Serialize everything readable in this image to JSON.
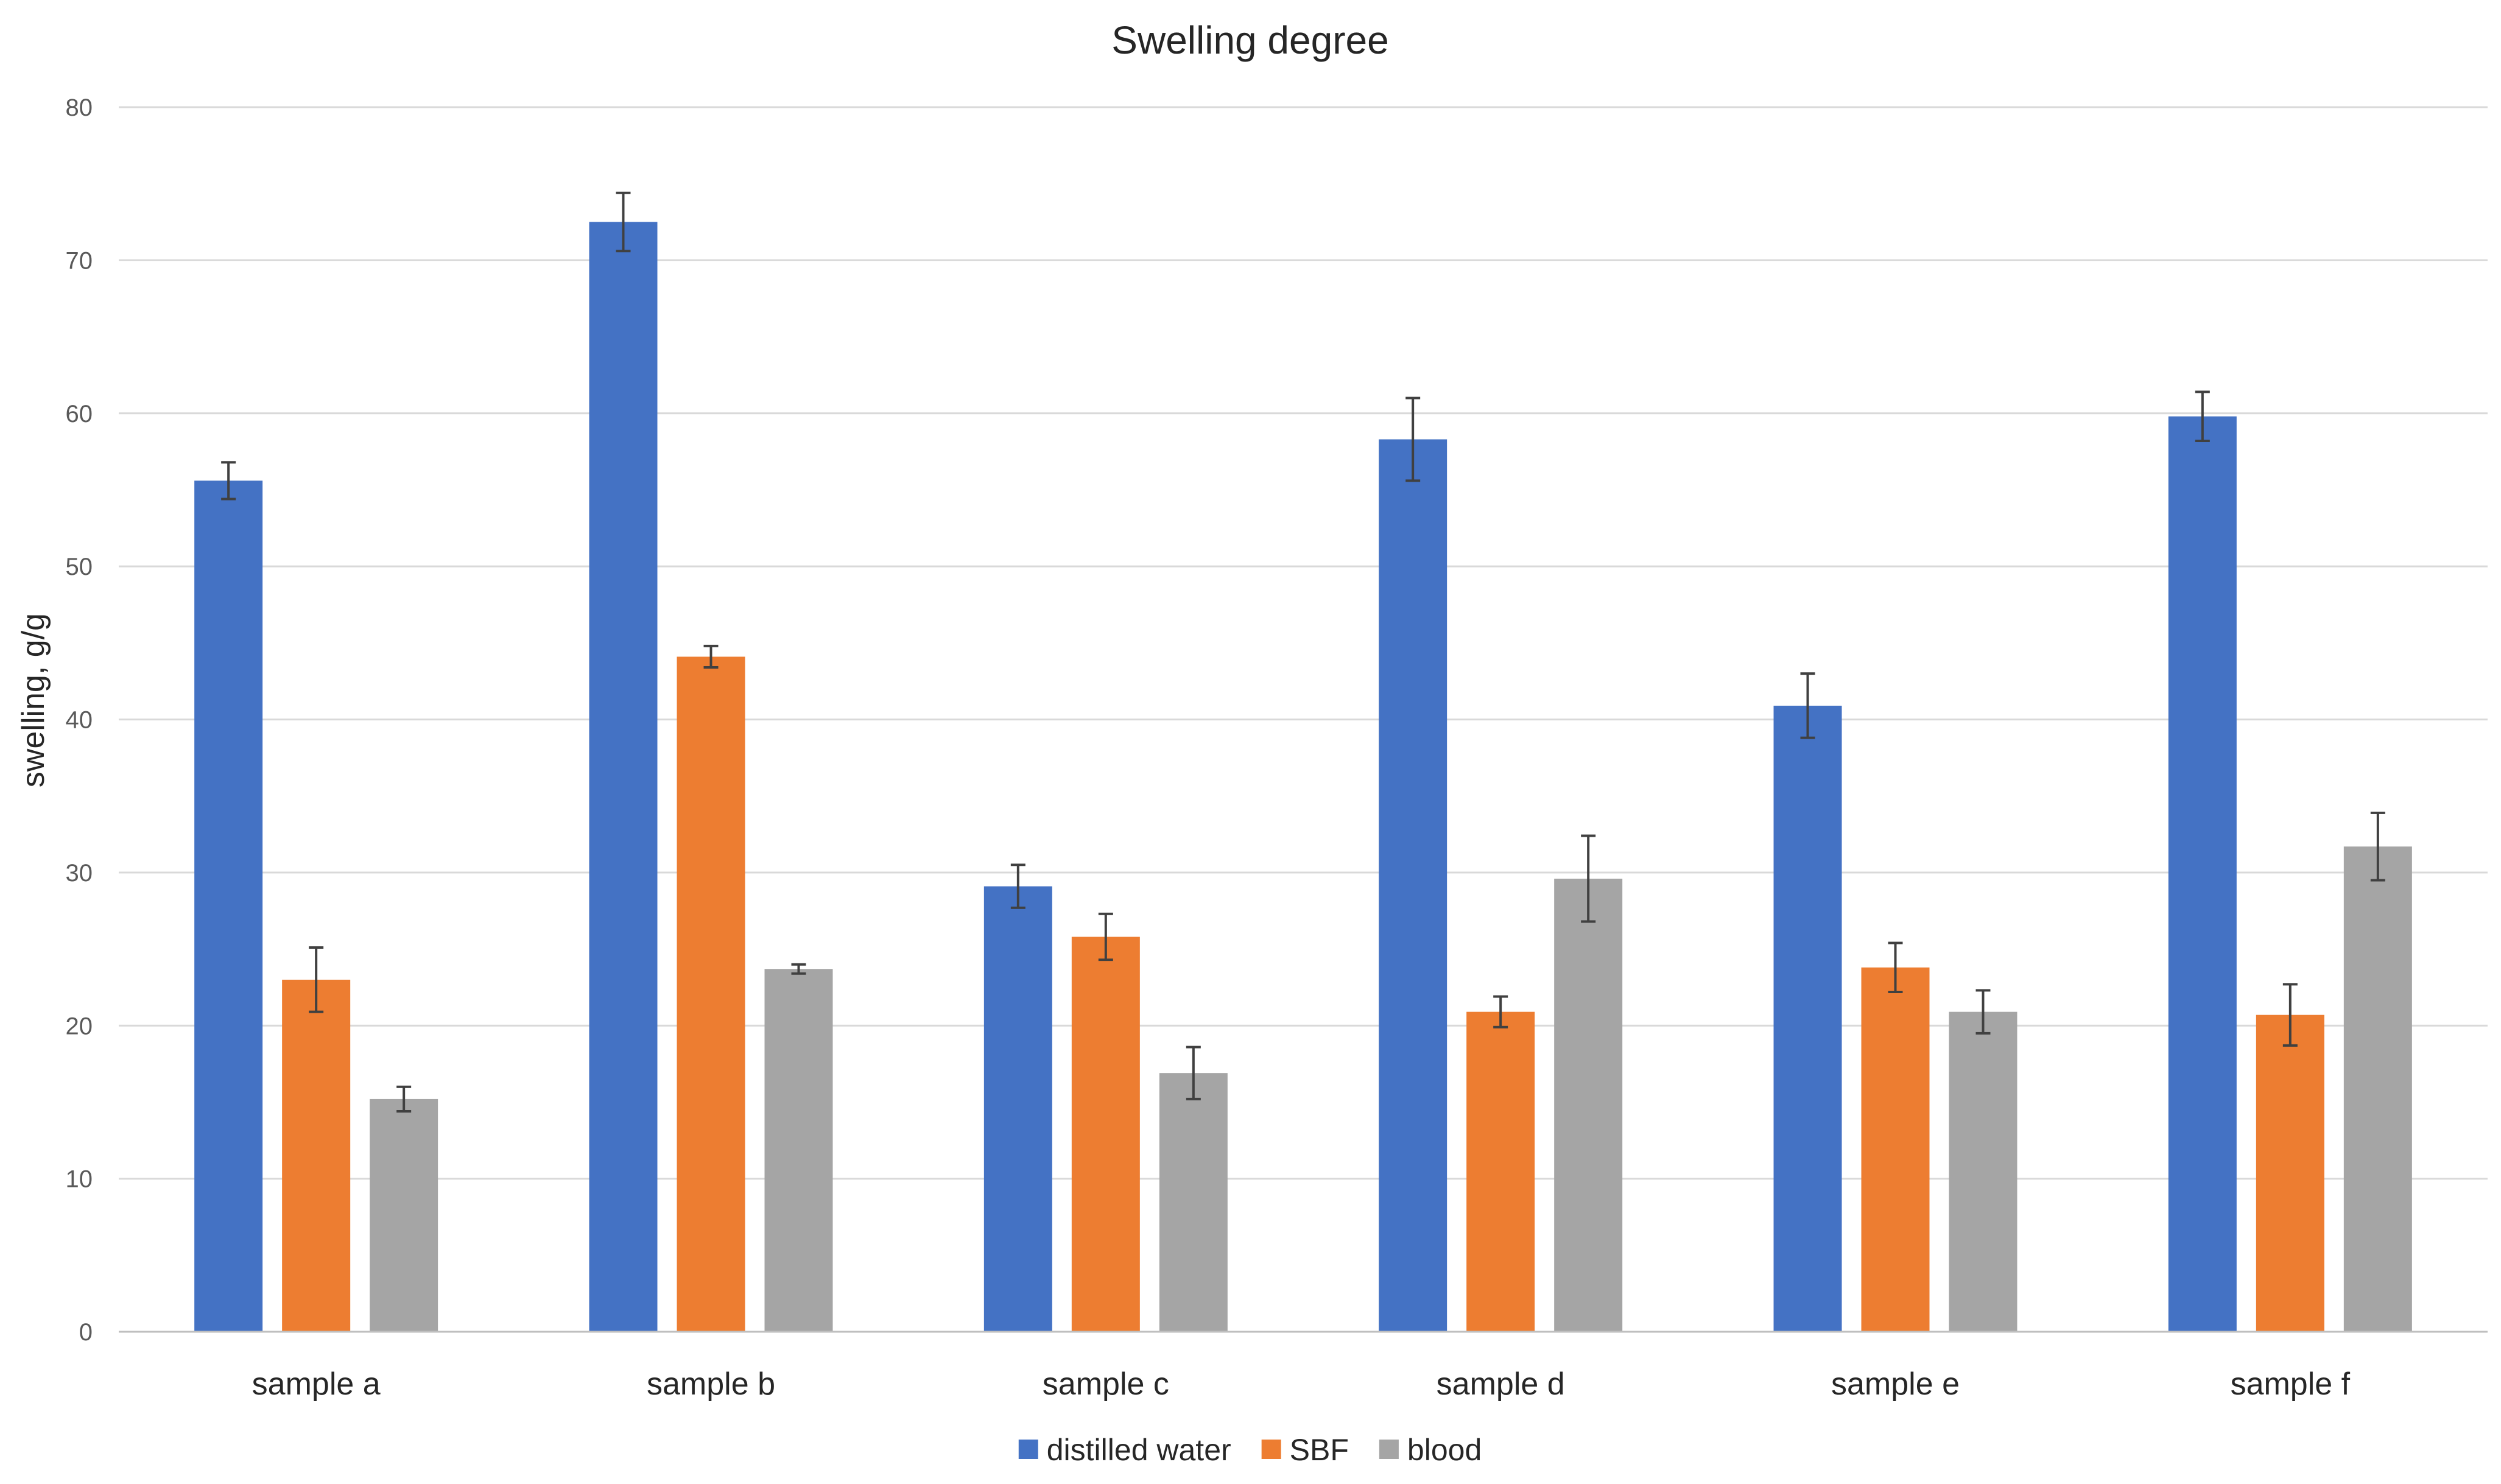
{
  "chart_data": {
    "type": "bar",
    "title": "Swelling degree",
    "xlabel": "",
    "ylabel": "swelling, g/g",
    "ylim": [
      0,
      80
    ],
    "yticks": [
      0,
      10,
      20,
      30,
      40,
      50,
      60,
      70,
      80
    ],
    "grid": true,
    "legend_position": "bottom",
    "categories": [
      "sample a",
      "sample b",
      "sample c",
      "sample d",
      "sample e",
      "sample f"
    ],
    "series": [
      {
        "name": "distilled water",
        "color": "#4472c4",
        "values": [
          55.6,
          72.5,
          29.1,
          58.3,
          40.9,
          59.8
        ],
        "errors": [
          1.2,
          1.9,
          1.4,
          2.7,
          2.1,
          1.6
        ]
      },
      {
        "name": "SBF",
        "color": "#ed7d31",
        "values": [
          23.0,
          44.1,
          25.8,
          20.9,
          23.8,
          20.7
        ],
        "errors": [
          2.1,
          0.7,
          1.5,
          1.0,
          1.6,
          2.0
        ]
      },
      {
        "name": "blood",
        "color": "#a5a5a5",
        "values": [
          15.2,
          23.7,
          16.9,
          29.6,
          20.9,
          31.7
        ],
        "errors": [
          0.8,
          0.3,
          1.7,
          2.8,
          1.4,
          2.2
        ]
      }
    ]
  }
}
